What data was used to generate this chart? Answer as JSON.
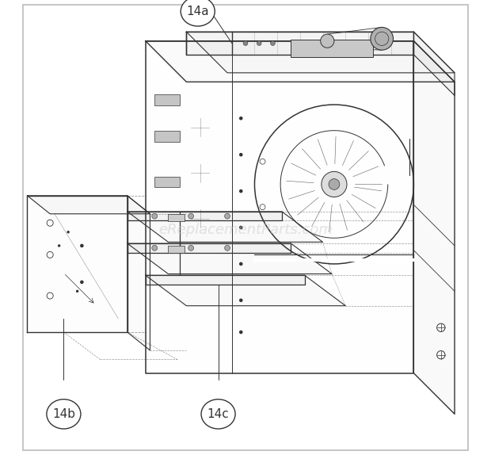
{
  "background_color": "#ffffff",
  "border_color": "#bbbbbb",
  "line_color": "#333333",
  "watermark_text": "eReplacementParts.com",
  "watermark_color": "#cccccc",
  "watermark_fontsize": 13,
  "label_14a": "14a",
  "label_14b": "14b",
  "label_14c": "14c",
  "label_fontsize": 11,
  "figsize": [
    6.2,
    5.74
  ],
  "dpi": 100
}
